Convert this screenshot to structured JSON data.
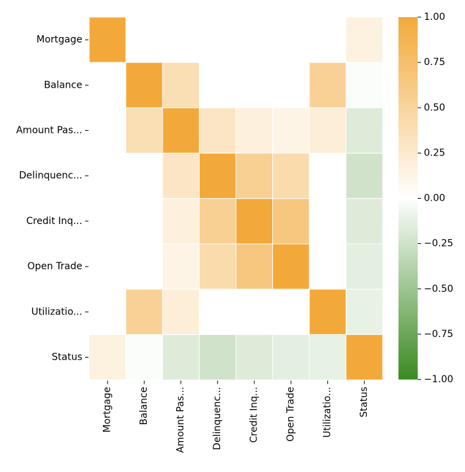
{
  "chart_data": {
    "type": "heatmap",
    "title": "",
    "xlabel": "",
    "ylabel": "",
    "rows": [
      "Mortgage",
      "Balance",
      "Amount Pas...",
      "Delinquenc...",
      "Credit Inq...",
      "Open Trade",
      "Utilizatio...",
      "Status"
    ],
    "columns": [
      "Mortgage",
      "Balance",
      "Amount Pas...",
      "Delinquenc...",
      "Credit Inq...",
      "Open Trade",
      "Utilizatio...",
      "Status"
    ],
    "values": [
      [
        1.0,
        0.0,
        0.0,
        0.0,
        0.0,
        0.0,
        0.0,
        0.16
      ],
      [
        0.0,
        1.0,
        0.38,
        0.0,
        0.0,
        0.0,
        0.53,
        -0.02
      ],
      [
        0.0,
        0.38,
        1.0,
        0.3,
        0.18,
        0.13,
        0.2,
        -0.17
      ],
      [
        0.0,
        0.0,
        0.3,
        1.0,
        0.55,
        0.42,
        0.0,
        -0.24
      ],
      [
        0.0,
        0.0,
        0.18,
        0.55,
        1.0,
        0.65,
        0.0,
        -0.17
      ],
      [
        0.0,
        0.0,
        0.13,
        0.42,
        0.65,
        1.0,
        0.0,
        -0.14
      ],
      [
        0.0,
        0.53,
        0.2,
        0.0,
        0.0,
        0.0,
        1.0,
        -0.12
      ],
      [
        0.16,
        -0.02,
        -0.17,
        -0.24,
        -0.17,
        -0.14,
        -0.12,
        1.0
      ]
    ],
    "colorbar": {
      "range": [
        -1.0,
        1.0
      ],
      "ticks": [
        "1.00",
        "0.75",
        "0.50",
        "0.25",
        "0.00",
        "−0.25",
        "−0.50",
        "−0.75",
        "−1.00"
      ],
      "tick_values": [
        1.0,
        0.75,
        0.5,
        0.25,
        0.0,
        -0.25,
        -0.5,
        -0.75,
        -1.0
      ],
      "colors": {
        "negative": "#3a8a22",
        "zero": "#ffffff",
        "positive": "#f3a93a"
      }
    },
    "grid": false,
    "cell_borders": "white"
  }
}
